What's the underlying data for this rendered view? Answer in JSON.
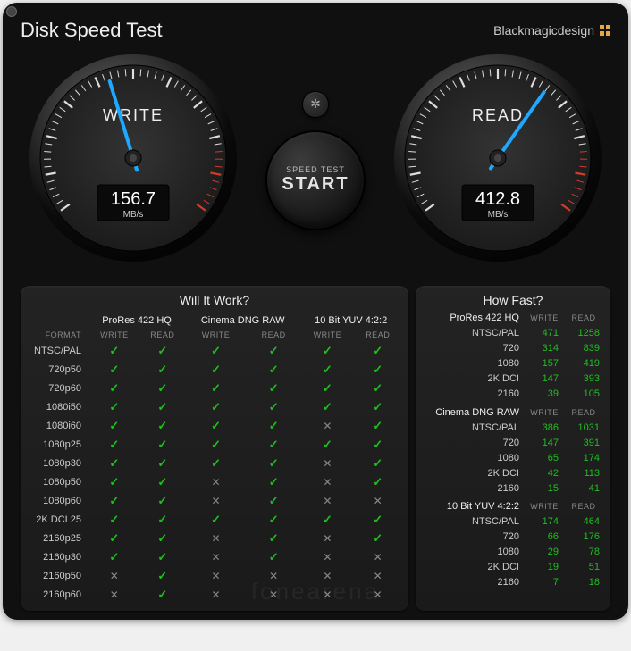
{
  "app": {
    "title": "Disk Speed Test",
    "brand": "Blackmagicdesign"
  },
  "colors": {
    "bg": "#101010",
    "panel": "#1e1e1e",
    "needle": "#1ea8ff",
    "redzone": "#d23b2a",
    "check": "#1fbf1f",
    "fail": "#888",
    "brand_accent": "#e5a83e"
  },
  "gauges": {
    "write": {
      "label": "WRITE",
      "value": "156.7",
      "unit": "MB/s",
      "angle": -107
    },
    "read": {
      "label": "READ",
      "value": "412.8",
      "unit": "MB/s",
      "angle": -55
    }
  },
  "start": {
    "line1": "SPEED TEST",
    "line2": "START"
  },
  "will_it_work": {
    "title": "Will It Work?",
    "format_header": "FORMAT",
    "sub_write": "WRITE",
    "sub_read": "READ",
    "groups": [
      "ProRes 422 HQ",
      "Cinema DNG RAW",
      "10 Bit YUV 4:2:2"
    ],
    "rows": [
      {
        "fmt": "NTSC/PAL",
        "cells": [
          1,
          1,
          1,
          1,
          1,
          1
        ]
      },
      {
        "fmt": "720p50",
        "cells": [
          1,
          1,
          1,
          1,
          1,
          1
        ]
      },
      {
        "fmt": "720p60",
        "cells": [
          1,
          1,
          1,
          1,
          1,
          1
        ]
      },
      {
        "fmt": "1080i50",
        "cells": [
          1,
          1,
          1,
          1,
          1,
          1
        ]
      },
      {
        "fmt": "1080i60",
        "cells": [
          1,
          1,
          1,
          1,
          0,
          1
        ]
      },
      {
        "fmt": "1080p25",
        "cells": [
          1,
          1,
          1,
          1,
          1,
          1
        ]
      },
      {
        "fmt": "1080p30",
        "cells": [
          1,
          1,
          1,
          1,
          0,
          1
        ]
      },
      {
        "fmt": "1080p50",
        "cells": [
          1,
          1,
          0,
          1,
          0,
          1
        ]
      },
      {
        "fmt": "1080p60",
        "cells": [
          1,
          1,
          0,
          1,
          0,
          0
        ]
      },
      {
        "fmt": "2K DCI 25",
        "cells": [
          1,
          1,
          1,
          1,
          1,
          1
        ]
      },
      {
        "fmt": "2160p25",
        "cells": [
          1,
          1,
          0,
          1,
          0,
          1
        ]
      },
      {
        "fmt": "2160p30",
        "cells": [
          1,
          1,
          0,
          1,
          0,
          0
        ]
      },
      {
        "fmt": "2160p50",
        "cells": [
          0,
          1,
          0,
          0,
          0,
          0
        ]
      },
      {
        "fmt": "2160p60",
        "cells": [
          0,
          1,
          0,
          0,
          0,
          0
        ]
      }
    ]
  },
  "how_fast": {
    "title": "How Fast?",
    "sub_write": "WRITE",
    "sub_read": "READ",
    "groups": [
      {
        "name": "ProRes 422 HQ",
        "rows": [
          {
            "lbl": "NTSC/PAL",
            "w": "471",
            "r": "1258"
          },
          {
            "lbl": "720",
            "w": "314",
            "r": "839"
          },
          {
            "lbl": "1080",
            "w": "157",
            "r": "419"
          },
          {
            "lbl": "2K DCI",
            "w": "147",
            "r": "393"
          },
          {
            "lbl": "2160",
            "w": "39",
            "r": "105"
          }
        ]
      },
      {
        "name": "Cinema DNG RAW",
        "rows": [
          {
            "lbl": "NTSC/PAL",
            "w": "386",
            "r": "1031"
          },
          {
            "lbl": "720",
            "w": "147",
            "r": "391"
          },
          {
            "lbl": "1080",
            "w": "65",
            "r": "174"
          },
          {
            "lbl": "2K DCI",
            "w": "42",
            "r": "113"
          },
          {
            "lbl": "2160",
            "w": "15",
            "r": "41"
          }
        ]
      },
      {
        "name": "10 Bit YUV 4:2:2",
        "rows": [
          {
            "lbl": "NTSC/PAL",
            "w": "174",
            "r": "464"
          },
          {
            "lbl": "720",
            "w": "66",
            "r": "176"
          },
          {
            "lbl": "1080",
            "w": "29",
            "r": "78"
          },
          {
            "lbl": "2K DCI",
            "w": "19",
            "r": "51"
          },
          {
            "lbl": "2160",
            "w": "7",
            "r": "18"
          }
        ]
      }
    ]
  },
  "watermark": "fonearena"
}
